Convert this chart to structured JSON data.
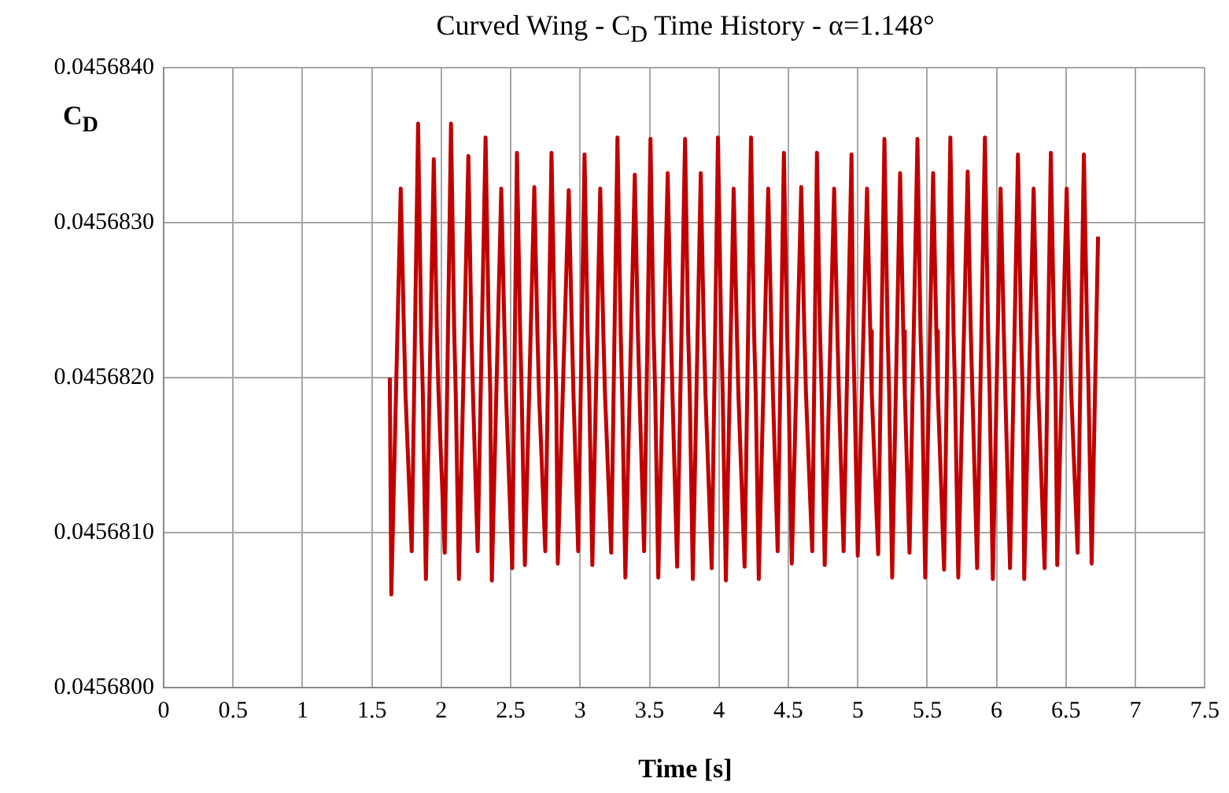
{
  "chart_data": {
    "type": "line",
    "title": "Curved Wing - C$_{D}$ Time History - α=1.148°",
    "xlabel": "Time [s]",
    "ylabel": "C$_{D}$",
    "x": [
      1.629,
      1.64,
      1.708,
      1.731,
      1.742,
      1.787,
      1.833,
      1.855,
      1.867,
      1.889,
      1.946,
      1.968,
      1.98,
      2.025,
      2.07,
      2.093,
      2.104,
      2.127,
      2.195,
      2.217,
      2.228,
      2.262,
      2.319,
      2.342,
      2.353,
      2.364,
      2.432,
      2.455,
      2.466,
      2.511,
      2.545,
      2.568,
      2.579,
      2.602,
      2.67,
      2.692,
      2.704,
      2.749,
      2.794,
      2.817,
      2.828,
      2.839,
      2.918,
      2.941,
      2.952,
      2.986,
      3.032,
      3.054,
      3.066,
      3.088,
      3.145,
      3.167,
      3.179,
      3.224,
      3.269,
      3.292,
      3.303,
      3.326,
      3.394,
      3.416,
      3.428,
      3.461,
      3.507,
      3.529,
      3.541,
      3.563,
      3.631,
      3.654,
      3.665,
      3.699,
      3.756,
      3.778,
      3.79,
      3.812,
      3.869,
      3.891,
      3.903,
      3.948,
      3.993,
      4.016,
      4.027,
      4.05,
      4.106,
      4.129,
      4.14,
      4.185,
      4.231,
      4.253,
      4.265,
      4.287,
      4.355,
      4.378,
      4.389,
      4.423,
      4.468,
      4.491,
      4.502,
      4.525,
      4.593,
      4.615,
      4.627,
      4.672,
      4.706,
      4.728,
      4.74,
      4.762,
      4.83,
      4.853,
      4.864,
      4.898,
      4.955,
      4.966,
      4.977,
      5.0,
      5.067,
      5.09,
      5.101,
      5.147,
      5.192,
      5.215,
      5.226,
      5.248,
      5.305,
      5.328,
      5.339,
      5.373,
      5.43,
      5.452,
      5.464,
      5.486,
      5.543,
      5.566,
      5.577,
      5.622,
      5.667,
      5.69,
      5.701,
      5.724,
      5.792,
      5.814,
      5.826,
      5.86,
      5.916,
      5.939,
      5.95,
      5.973,
      6.029,
      6.052,
      6.063,
      6.097,
      6.154,
      6.176,
      6.188,
      6.199,
      6.267,
      6.29,
      6.301,
      6.346,
      6.391,
      6.414,
      6.425,
      6.437,
      6.505,
      6.527,
      6.538,
      6.584,
      6.629,
      6.652,
      6.663,
      6.685,
      6.731
    ],
    "values": [
      0.045682,
      0.0456806,
      0.04568322,
      0.0456823,
      0.0456819,
      0.04568088,
      0.04568364,
      0.0456823,
      0.0456819,
      0.0456807,
      0.04568341,
      0.0456823,
      0.0456819,
      0.04568087,
      0.04568364,
      0.0456823,
      0.0456819,
      0.0456807,
      0.04568343,
      0.0456823,
      0.0456819,
      0.04568088,
      0.04568355,
      0.0456823,
      0.0456819,
      0.04568069,
      0.04568322,
      0.0456823,
      0.0456819,
      0.04568077,
      0.04568345,
      0.0456823,
      0.0456819,
      0.04568079,
      0.04568323,
      0.0456823,
      0.0456819,
      0.04568088,
      0.04568345,
      0.0456823,
      0.0456819,
      0.0456808,
      0.04568321,
      0.0456823,
      0.0456819,
      0.04568088,
      0.04568344,
      0.0456823,
      0.0456819,
      0.04568079,
      0.04568322,
      0.0456823,
      0.0456819,
      0.04568087,
      0.04568355,
      0.0456823,
      0.0456819,
      0.04568071,
      0.04568331,
      0.0456823,
      0.0456819,
      0.04568088,
      0.04568354,
      0.0456823,
      0.0456819,
      0.04568071,
      0.04568332,
      0.0456823,
      0.0456819,
      0.04568078,
      0.04568354,
      0.0456823,
      0.0456819,
      0.0456807,
      0.04568332,
      0.0456823,
      0.0456819,
      0.04568077,
      0.04568355,
      0.0456823,
      0.0456819,
      0.04568069,
      0.04568322,
      0.0456823,
      0.0456819,
      0.04568078,
      0.04568355,
      0.0456823,
      0.0456819,
      0.0456807,
      0.04568322,
      0.0456823,
      0.0456819,
      0.04568088,
      0.04568345,
      0.0456823,
      0.0456819,
      0.0456808,
      0.04568323,
      0.0456823,
      0.0456819,
      0.04568088,
      0.04568345,
      0.0456823,
      0.0456819,
      0.04568079,
      0.04568322,
      0.0456823,
      0.0456819,
      0.04568088,
      0.04568344,
      0.0456823,
      0.0456819,
      0.04568085,
      0.04568322,
      0.0456823,
      0.0456819,
      0.04568086,
      0.04568354,
      0.0456823,
      0.0456819,
      0.04568071,
      0.04568332,
      0.0456823,
      0.0456819,
      0.04568087,
      0.04568354,
      0.0456823,
      0.0456819,
      0.04568071,
      0.04568332,
      0.0456823,
      0.0456819,
      0.04568076,
      0.04568355,
      0.0456823,
      0.0456819,
      0.04568071,
      0.04568333,
      0.0456823,
      0.0456819,
      0.04568077,
      0.04568355,
      0.0456823,
      0.0456819,
      0.0456807,
      0.04568322,
      0.0456823,
      0.0456819,
      0.04568077,
      0.04568344,
      0.0456823,
      0.0456819,
      0.0456807,
      0.04568322,
      0.0456823,
      0.0456819,
      0.04568077,
      0.04568345,
      0.0456823,
      0.0456819,
      0.04568079,
      0.04568322,
      0.0456823,
      0.0456819,
      0.04568087,
      0.04568344,
      0.0456823,
      0.0456819,
      0.0456808,
      0.04568291
    ],
    "color": "#c00000",
    "marker": "none",
    "line_style": "solid",
    "grid": true,
    "legend": false,
    "xlim": [
      0,
      7.5
    ],
    "xticks": [
      0,
      0.5,
      1,
      1.5,
      2,
      2.5,
      3,
      3.5,
      4,
      4.5,
      5,
      5.5,
      6,
      6.5,
      7,
      7.5
    ],
    "ylim": [
      0.04568,
      0.045684
    ],
    "yticks": [
      {
        "value": 0.04568,
        "label": "0.0456800"
      },
      {
        "value": 0.045681,
        "label": "0.0456810"
      },
      {
        "value": 0.045682,
        "label": "0.0456820"
      },
      {
        "value": 0.045683,
        "label": "0.0456830"
      },
      {
        "value": 0.045684,
        "label": "0.0456840"
      }
    ]
  }
}
